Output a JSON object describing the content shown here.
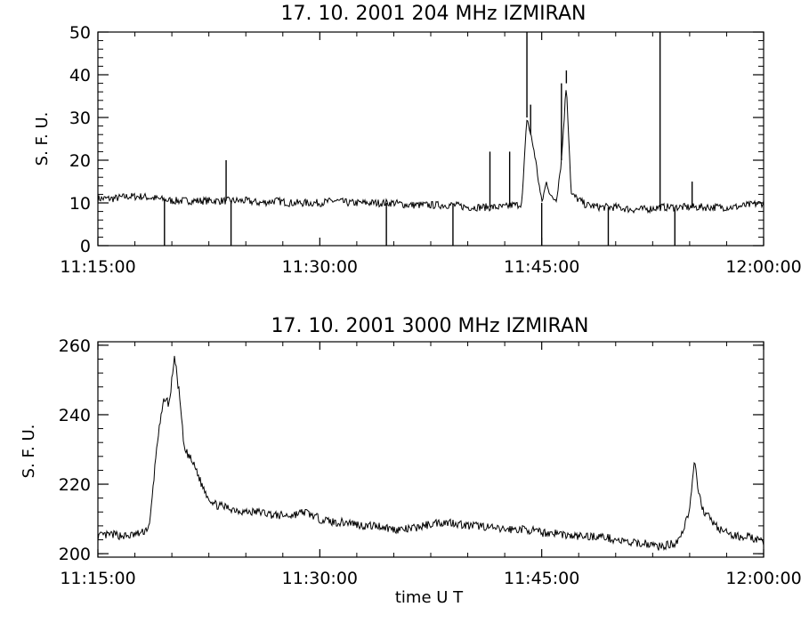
{
  "chart_data": [
    {
      "type": "line",
      "title": "17.  10.  2001    204  MHz    IZMIRAN",
      "ylabel": "S. F. U.",
      "xlabel": "",
      "xlim": [
        "11:15:00",
        "12:00:00"
      ],
      "ylim": [
        0,
        50
      ],
      "x_ticks": [
        "11:15:00",
        "11:30:00",
        "11:45:00",
        "12:00:00"
      ],
      "y_ticks": [
        0,
        10,
        20,
        30,
        40,
        50
      ],
      "grid": false,
      "color": "#000000",
      "series": [
        {
          "x": [
            "11:15:00",
            "11:16:00",
            "11:17:00",
            "11:18:00",
            "11:19:00",
            "11:20:00",
            "11:21:00",
            "11:22:00",
            "11:23:00",
            "11:24:00",
            "11:25:00",
            "11:26:00",
            "11:27:00",
            "11:28:00",
            "11:29:00",
            "11:30:00",
            "11:31:00",
            "11:32:00",
            "11:33:00",
            "11:34:00",
            "11:35:00",
            "11:36:00",
            "11:37:00",
            "11:38:00",
            "11:39:00",
            "11:40:00",
            "11:41:00",
            "11:42:00",
            "11:42:30",
            "11:43:00",
            "11:43:20",
            "11:43:40",
            "11:44:00",
            "11:44:30",
            "11:45:00",
            "11:45:20",
            "11:45:40",
            "11:46:00",
            "11:46:20",
            "11:46:40",
            "11:47:00",
            "11:48:00",
            "11:49:00",
            "11:50:00",
            "11:51:00",
            "11:52:00",
            "11:53:00",
            "11:54:00",
            "11:55:00",
            "11:56:00",
            "11:57:00",
            "11:58:00",
            "11:59:00",
            "12:00:00"
          ],
          "values": [
            11,
            11,
            11.5,
            11.5,
            11,
            10.5,
            10.5,
            10.5,
            10.5,
            10.5,
            10.5,
            10,
            10.5,
            10,
            10,
            10,
            10.5,
            10,
            10,
            10,
            10,
            9.5,
            9.5,
            9.5,
            9.5,
            9,
            9,
            9,
            9,
            9.5,
            9.5,
            10,
            30,
            22,
            10,
            15,
            11,
            11,
            20,
            38,
            12,
            9.5,
            9,
            9,
            8.5,
            8.5,
            9,
            9,
            9,
            9,
            9,
            9,
            9.5,
            10
          ]
        }
      ],
      "spikes": [
        {
          "x": "11:23:40",
          "y": 20
        },
        {
          "x": "11:41:30",
          "y": 22
        },
        {
          "x": "11:42:50",
          "y": 22
        },
        {
          "x": "11:44:00",
          "y": 50
        },
        {
          "x": "11:44:15",
          "y": 33
        },
        {
          "x": "11:46:20",
          "y": 38
        },
        {
          "x": "11:46:40",
          "y": 41
        },
        {
          "x": "11:53:00",
          "y": 50
        },
        {
          "x": "11:55:10",
          "y": 15
        }
      ],
      "dropouts": [
        {
          "x": "11:19:30",
          "y": 0
        },
        {
          "x": "11:24:00",
          "y": 0
        },
        {
          "x": "11:34:30",
          "y": 0
        },
        {
          "x": "11:39:00",
          "y": 0
        },
        {
          "x": "11:45:00",
          "y": 0
        },
        {
          "x": "11:49:30",
          "y": 0
        },
        {
          "x": "11:54:00",
          "y": 0
        }
      ]
    },
    {
      "type": "line",
      "title": "17.  10.  2001    3000  MHz    IZMIRAN",
      "ylabel": "S. F. U.",
      "xlabel": "time   U T",
      "xlim": [
        "11:15:00",
        "12:00:00"
      ],
      "ylim": [
        199,
        261
      ],
      "x_ticks": [
        "11:15:00",
        "11:30:00",
        "11:45:00",
        "12:00:00"
      ],
      "y_ticks": [
        200,
        220,
        240,
        260
      ],
      "grid": false,
      "color": "#000000",
      "series": [
        {
          "x": [
            "11:15:00",
            "11:16:00",
            "11:17:00",
            "11:18:00",
            "11:18:30",
            "11:19:00",
            "11:19:30",
            "11:19:50",
            "11:20:10",
            "11:20:30",
            "11:20:50",
            "11:21:10",
            "11:21:40",
            "11:22:00",
            "11:22:30",
            "11:23:00",
            "11:24:00",
            "11:25:00",
            "11:26:00",
            "11:27:00",
            "11:28:00",
            "11:29:00",
            "11:30:00",
            "11:31:00",
            "11:32:00",
            "11:33:00",
            "11:34:00",
            "11:35:00",
            "11:36:00",
            "11:37:00",
            "11:38:00",
            "11:39:00",
            "11:40:00",
            "11:41:00",
            "11:42:00",
            "11:43:00",
            "11:44:00",
            "11:45:00",
            "11:46:00",
            "11:47:00",
            "11:48:00",
            "11:49:00",
            "11:50:00",
            "11:51:00",
            "11:52:00",
            "11:53:00",
            "11:54:00",
            "11:54:30",
            "11:55:00",
            "11:55:20",
            "11:55:40",
            "11:56:00",
            "11:57:00",
            "11:58:00",
            "11:59:00",
            "12:00:00"
          ],
          "values": [
            205,
            205.5,
            205,
            206,
            208,
            232,
            245,
            243,
            257,
            246,
            230,
            228,
            224,
            220,
            216,
            214,
            213,
            212,
            212,
            211,
            211,
            212,
            210,
            209,
            209,
            208,
            208,
            207,
            207,
            208,
            209,
            209,
            208,
            208,
            207,
            207,
            207,
            206,
            206,
            205,
            205,
            205,
            204,
            203,
            203,
            202,
            203,
            206,
            213,
            226,
            216,
            212,
            207,
            205,
            205,
            203
          ]
        }
      ]
    }
  ]
}
